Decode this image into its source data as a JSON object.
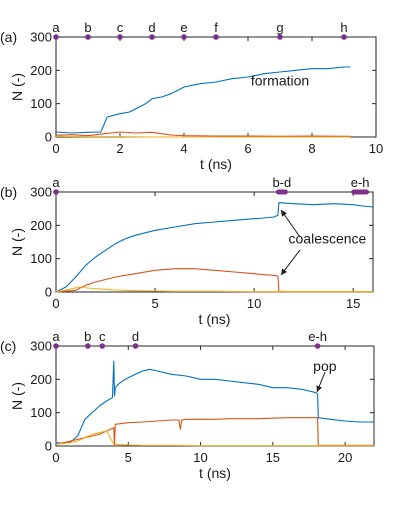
{
  "chart_data": [
    {
      "panel": "(a)",
      "type": "line",
      "xlabel": "t (ns)",
      "ylabel": "N (-)",
      "xlim": [
        0,
        10
      ],
      "ylim": [
        0,
        300
      ],
      "xticks": [
        0,
        2,
        4,
        6,
        8,
        10
      ],
      "yticks": [
        0,
        100,
        200,
        300
      ],
      "marker_color": "#7e2f8e",
      "markers": [
        {
          "label": "a",
          "x": 0
        },
        {
          "label": "b",
          "x": 1
        },
        {
          "label": "c",
          "x": 2
        },
        {
          "label": "d",
          "x": 3
        },
        {
          "label": "e",
          "x": 4
        },
        {
          "label": "f",
          "x": 5
        },
        {
          "label": "g",
          "x": 7
        },
        {
          "label": "h",
          "x": 9
        }
      ],
      "annotations": [
        {
          "text": "formation",
          "x": 7.0,
          "y": 155
        }
      ],
      "series": [
        {
          "color": "#0072bd",
          "x": [
            0,
            0.5,
            1.0,
            1.4,
            1.6,
            2.0,
            2.3,
            2.5,
            2.8,
            3.0,
            3.3,
            3.6,
            4.0,
            4.5,
            5.0,
            5.5,
            6.0,
            6.5,
            7.0,
            7.5,
            8.0,
            8.5,
            9.0,
            9.2
          ],
          "values": [
            15,
            12,
            14,
            15,
            60,
            70,
            75,
            85,
            100,
            115,
            120,
            130,
            150,
            160,
            165,
            175,
            180,
            190,
            195,
            200,
            205,
            205,
            210,
            210
          ]
        },
        {
          "color": "#d95319",
          "x": [
            0,
            0.5,
            1.0,
            1.5,
            2.0,
            2.5,
            3.0,
            3.3,
            3.6,
            4.0,
            5.0,
            6.0,
            7.0,
            8.0,
            9.0,
            9.2
          ],
          "values": [
            5,
            7,
            4,
            10,
            15,
            12,
            14,
            10,
            6,
            4,
            3,
            3,
            2,
            3,
            2,
            2
          ]
        },
        {
          "color": "#edb120",
          "x": [
            0,
            1,
            2,
            3,
            4,
            5,
            6,
            7,
            8,
            9,
            9.2
          ],
          "values": [
            2,
            1,
            1,
            0,
            0,
            0,
            0,
            0,
            0,
            0,
            0
          ]
        }
      ]
    },
    {
      "panel": "(b)",
      "type": "line",
      "xlabel": "t (ns)",
      "ylabel": "N (-)",
      "xlim": [
        0,
        16
      ],
      "ylim": [
        0,
        300
      ],
      "xticks": [
        0,
        5,
        10,
        15
      ],
      "yticks": [
        0,
        100,
        200,
        300
      ],
      "marker_color": "#7e2f8e",
      "markers": [
        {
          "label": "a",
          "x": 0
        },
        {
          "label": "b-d",
          "x": 11.2,
          "x_end": 11.6
        },
        {
          "label": "e-h",
          "x": 15.0,
          "x_end": 15.7
        }
      ],
      "annotations": [
        {
          "text": "coalescence",
          "x": 13.7,
          "y": 145
        }
      ],
      "series": [
        {
          "color": "#0072bd",
          "x": [
            0,
            0.5,
            1.0,
            1.5,
            2.0,
            2.5,
            3.0,
            3.5,
            4.0,
            5.0,
            6.0,
            7.0,
            8.0,
            9.0,
            10.0,
            10.5,
            11.0,
            11.2,
            11.25,
            12.0,
            13.0,
            14.0,
            15.0,
            15.5,
            16.0
          ],
          "values": [
            0,
            15,
            45,
            80,
            105,
            125,
            145,
            160,
            170,
            185,
            195,
            205,
            210,
            215,
            220,
            222,
            225,
            230,
            268,
            265,
            262,
            265,
            262,
            258,
            255
          ]
        },
        {
          "color": "#d95319",
          "x": [
            0,
            1.0,
            1.5,
            2.0,
            3.0,
            4.0,
            5.0,
            6.0,
            7.0,
            8.0,
            9.0,
            10.0,
            10.5,
            11.0,
            11.2,
            11.25,
            12.0,
            16.0
          ],
          "values": [
            0,
            5,
            20,
            30,
            45,
            55,
            65,
            70,
            70,
            65,
            60,
            55,
            52,
            50,
            48,
            2,
            1,
            1
          ]
        },
        {
          "color": "#edb120",
          "x": [
            0,
            0.8,
            1.2,
            1.6,
            2.0,
            2.5,
            3.0,
            4.0,
            5.0,
            6.0,
            8.0,
            10.0,
            12.0,
            16.0
          ],
          "values": [
            0,
            10,
            15,
            12,
            10,
            8,
            6,
            4,
            3,
            2,
            2,
            1,
            1,
            1
          ]
        }
      ]
    },
    {
      "panel": "(c)",
      "type": "line",
      "xlabel": "t (ns)",
      "ylabel": "N (-)",
      "xlim": [
        0,
        22
      ],
      "ylim": [
        0,
        300
      ],
      "xticks": [
        0,
        5,
        10,
        15,
        20
      ],
      "yticks": [
        0,
        100,
        200,
        300
      ],
      "marker_color": "#7e2f8e",
      "markers": [
        {
          "label": "a",
          "x": 0
        },
        {
          "label": "b",
          "x": 2.2
        },
        {
          "label": "c",
          "x": 3.2
        },
        {
          "label": "d",
          "x": 5.5
        },
        {
          "label": "e-h",
          "x": 18.1
        }
      ],
      "annotations": [
        {
          "text": "pop",
          "x": 18.6,
          "y": 225
        }
      ],
      "series": [
        {
          "color": "#0072bd",
          "x": [
            0,
            0.5,
            1.0,
            1.5,
            2.0,
            2.5,
            3.0,
            3.5,
            3.9,
            4.0,
            4.05,
            4.1,
            4.3,
            4.6,
            5.0,
            5.5,
            6.0,
            6.5,
            7.0,
            8.0,
            9.0,
            10.0,
            11.0,
            12.0,
            13.0,
            14.0,
            15.0,
            16.0,
            17.0,
            17.5,
            18.0,
            18.1,
            18.15,
            19.0,
            20.0,
            21.0,
            22.0
          ],
          "values": [
            10,
            8,
            12,
            30,
            80,
            100,
            120,
            135,
            145,
            255,
            150,
            175,
            185,
            195,
            205,
            215,
            225,
            230,
            225,
            215,
            210,
            200,
            200,
            195,
            190,
            185,
            175,
            175,
            170,
            165,
            160,
            155,
            85,
            80,
            75,
            72,
            72
          ]
        },
        {
          "color": "#d95319",
          "x": [
            0,
            1.0,
            2.0,
            2.5,
            3.0,
            3.5,
            4.0,
            4.05,
            4.1,
            5.0,
            6.0,
            7.0,
            8.0,
            8.5,
            8.6,
            8.7,
            9.0,
            10.0,
            11.0,
            12.0,
            14.0,
            16.0,
            17.0,
            18.0,
            18.1,
            18.15,
            22.0
          ],
          "values": [
            5,
            15,
            25,
            30,
            35,
            45,
            55,
            0,
            65,
            70,
            72,
            75,
            78,
            78,
            50,
            78,
            80,
            80,
            80,
            82,
            82,
            85,
            85,
            85,
            85,
            2,
            2
          ]
        },
        {
          "color": "#edb120",
          "x": [
            0,
            1.0,
            1.5,
            2.0,
            2.5,
            3.0,
            3.5,
            4.0,
            5.0,
            6.0,
            8.0,
            10.0,
            22.0
          ],
          "values": [
            5,
            10,
            15,
            25,
            35,
            40,
            45,
            5,
            3,
            2,
            2,
            1,
            1
          ]
        }
      ]
    }
  ]
}
